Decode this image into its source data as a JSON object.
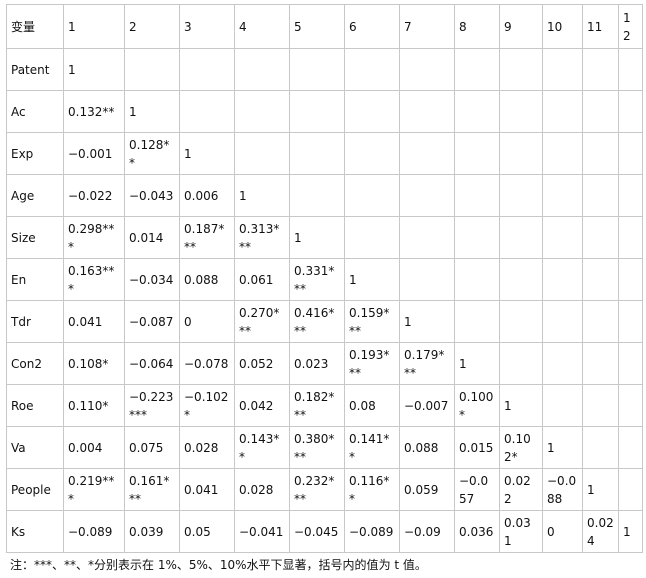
{
  "table": {
    "header": [
      "变量",
      "1",
      "2",
      "3",
      "4",
      "5",
      "6",
      "7",
      "8",
      "9",
      "10",
      "11",
      "12"
    ],
    "rows": [
      {
        "label": "Patent",
        "values": [
          "1"
        ]
      },
      {
        "label": "Ac",
        "values": [
          "0.132**",
          "1"
        ]
      },
      {
        "label": "Exp",
        "values": [
          "−0.001",
          "0.128**",
          "1"
        ]
      },
      {
        "label": "Age",
        "values": [
          "−0.022",
          "−0.043",
          "0.006",
          "1"
        ]
      },
      {
        "label": "Size",
        "values": [
          "0.298***",
          "0.014",
          "0.187***",
          "0.313***",
          "1"
        ]
      },
      {
        "label": "En",
        "values": [
          "0.163***",
          "−0.034",
          "0.088",
          "0.061",
          "0.331***",
          "1"
        ]
      },
      {
        "label": "Tdr",
        "values": [
          "0.041",
          "−0.087",
          "0",
          "0.270***",
          "0.416***",
          "0.159***",
          "1"
        ]
      },
      {
        "label": "Con2",
        "values": [
          "0.108*",
          "−0.064",
          "−0.078",
          "0.052",
          "0.023",
          "0.193***",
          "0.179***",
          "1"
        ]
      },
      {
        "label": "Roe",
        "values": [
          "0.110*",
          "−0.223***",
          "−0.102*",
          "0.042",
          "0.182***",
          "0.08",
          "−0.007",
          "0.100*",
          "1"
        ]
      },
      {
        "label": "Va",
        "values": [
          "0.004",
          "0.075",
          "0.028",
          "0.143**",
          "0.380***",
          "0.141**",
          "0.088",
          "0.015",
          "0.102*",
          "1"
        ]
      },
      {
        "label": "People",
        "values": [
          "0.219***",
          "0.161***",
          "0.041",
          "0.028",
          "0.232***",
          "0.116**",
          "0.059",
          "−0.057",
          "0.022",
          "−0.088",
          "1"
        ]
      },
      {
        "label": "Ks",
        "values": [
          "−0.089",
          "0.039",
          "0.05",
          "−0.041",
          "−0.045",
          "−0.089",
          "−0.09",
          "0.036",
          "0.031",
          "0",
          "0.024",
          "1"
        ]
      }
    ]
  },
  "note": "注：***、**、*分别表示在 1%、5%、10%水平下显著，括号内的值为 t 值。"
}
